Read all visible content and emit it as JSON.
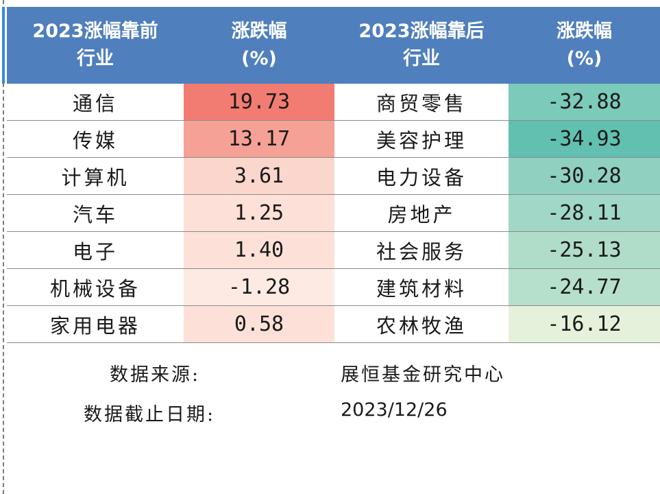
{
  "header": {
    "col1": [
      "2023涨幅靠前",
      "行业"
    ],
    "col2": [
      "涨跌幅",
      "(%)"
    ],
    "col3": [
      "2023涨幅靠后",
      "行业"
    ],
    "col4": [
      "涨跌幅",
      "(%)"
    ]
  },
  "colors": {
    "header_bg": "#4f7fbd",
    "positive_high": "#f07a6e",
    "negative_high": "#60bfb1",
    "neutral": "#ffffff"
  },
  "chart_data": {
    "type": "table",
    "columns": [
      "2023涨幅靠前行业",
      "涨跌幅(%)",
      "2023涨幅靠后行业",
      "涨跌幅(%)"
    ],
    "rows": [
      {
        "top_industry": "通信",
        "top_change": "19.73",
        "top_color": "#f27c71",
        "bottom_industry": "商贸零售",
        "bottom_change": "-32.88",
        "bottom_color": "#7ccab9"
      },
      {
        "top_industry": "传媒",
        "top_change": "13.17",
        "top_color": "#f6a196",
        "bottom_industry": "美容护理",
        "bottom_change": "-34.93",
        "bottom_color": "#62c0b1"
      },
      {
        "top_industry": "计算机",
        "top_change": "3.61",
        "top_color": "#fbd6cd",
        "bottom_industry": "电力设备",
        "bottom_change": "-30.28",
        "bottom_color": "#8fd0c0"
      },
      {
        "top_industry": "汽车",
        "top_change": "1.25",
        "top_color": "#fde0d7",
        "bottom_industry": "房地产",
        "bottom_change": "-28.11",
        "bottom_color": "#a0d7c6"
      },
      {
        "top_industry": "电子",
        "top_change": "1.40",
        "top_color": "#fde0d7",
        "bottom_industry": "社会服务",
        "bottom_change": "-25.13",
        "bottom_color": "#b0dcca"
      },
      {
        "top_industry": "机械设备",
        "top_change": "-1.28",
        "top_color": "#fdebe3",
        "bottom_industry": "建筑材料",
        "bottom_change": "-24.77",
        "bottom_color": "#b6dfcc"
      },
      {
        "top_industry": "家用电器",
        "top_change": "0.58",
        "top_color": "#fde1d8",
        "bottom_industry": "农林牧渔",
        "bottom_change": "-16.12",
        "bottom_color": "#e6f1dc"
      }
    ]
  },
  "footer": {
    "source_label": "数据来源:",
    "source_value": "展恒基金研究中心",
    "date_label": "数据截止日期:",
    "date_value": "2023/12/26"
  }
}
